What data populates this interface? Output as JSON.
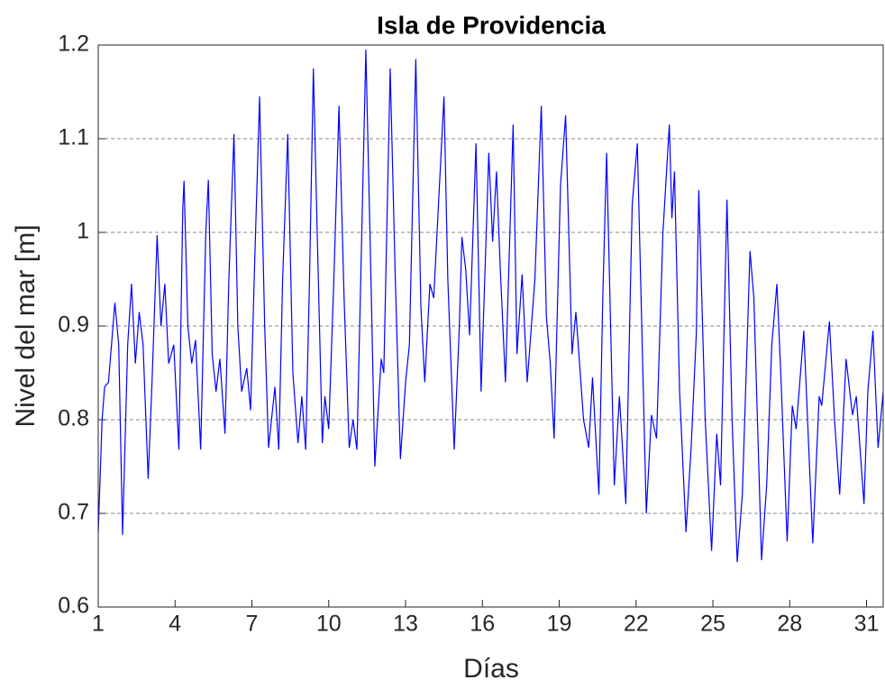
{
  "chart_data": {
    "type": "line",
    "title": "Isla de Providencia",
    "xlabel": "Días",
    "ylabel": "Nivel del mar [m]",
    "color": "#0000ff",
    "grid": true,
    "xlim": [
      1,
      31.65
    ],
    "ylim": [
      0.6,
      1.2
    ],
    "xticks": [
      1,
      4,
      7,
      10,
      13,
      16,
      19,
      22,
      25,
      28,
      31
    ],
    "yticks": [
      0.6,
      0.7,
      0.8,
      0.9,
      1,
      1.1,
      1.2
    ],
    "x": [
      1.0,
      1.15,
      1.25,
      1.4,
      1.65,
      1.8,
      1.95,
      2.15,
      2.3,
      2.45,
      2.6,
      2.75,
      2.95,
      3.1,
      3.3,
      3.45,
      3.6,
      3.75,
      3.95,
      4.15,
      4.3,
      4.35,
      4.5,
      4.65,
      4.8,
      5.0,
      5.2,
      5.3,
      5.45,
      5.6,
      5.75,
      5.95,
      6.1,
      6.3,
      6.45,
      6.6,
      6.8,
      6.95,
      7.1,
      7.3,
      7.5,
      7.65,
      7.9,
      8.05,
      8.2,
      8.4,
      8.6,
      8.8,
      8.95,
      9.1,
      9.25,
      9.4,
      9.55,
      9.75,
      9.85,
      10.0,
      10.2,
      10.4,
      10.6,
      10.8,
      10.95,
      11.1,
      11.25,
      11.45,
      11.65,
      11.8,
      11.95,
      12.05,
      12.15,
      12.4,
      12.6,
      12.8,
      13.0,
      13.15,
      13.4,
      13.6,
      13.75,
      13.95,
      14.1,
      14.5,
      14.65,
      14.9,
      15.1,
      15.2,
      15.35,
      15.5,
      15.75,
      15.95,
      16.25,
      16.4,
      16.55,
      16.7,
      16.9,
      17.2,
      17.35,
      17.55,
      17.75,
      18.05,
      18.3,
      18.5,
      18.65,
      18.8,
      19.05,
      19.25,
      19.5,
      19.65,
      19.95,
      20.15,
      20.3,
      20.55,
      20.7,
      20.85,
      21.15,
      21.35,
      21.6,
      21.85,
      22.05,
      22.4,
      22.6,
      22.8,
      23.05,
      23.3,
      23.4,
      23.5,
      23.7,
      23.95,
      24.15,
      24.35,
      24.45,
      24.7,
      24.95,
      25.15,
      25.3,
      25.55,
      25.75,
      25.95,
      26.15,
      26.45,
      26.6,
      26.9,
      27.1,
      27.3,
      27.5,
      27.65,
      27.9,
      28.1,
      28.25,
      28.55,
      28.9,
      29.15,
      29.25,
      29.55,
      29.75,
      29.95,
      30.2,
      30.45,
      30.6,
      30.9,
      31.05,
      31.25,
      31.45,
      31.65
    ],
    "values": [
      0.68,
      0.8,
      0.835,
      0.84,
      0.925,
      0.88,
      0.677,
      0.88,
      0.945,
      0.86,
      0.915,
      0.88,
      0.737,
      0.84,
      0.997,
      0.9,
      0.945,
      0.86,
      0.88,
      0.768,
      1.025,
      1.055,
      0.9,
      0.86,
      0.885,
      0.768,
      1.0,
      1.056,
      0.87,
      0.83,
      0.865,
      0.785,
      0.95,
      1.105,
      0.9,
      0.83,
      0.855,
      0.81,
      0.96,
      1.145,
      0.9,
      0.77,
      0.835,
      0.768,
      0.95,
      1.105,
      0.85,
      0.775,
      0.825,
      0.768,
      0.95,
      1.175,
      1.0,
      0.775,
      0.825,
      0.79,
      0.95,
      1.135,
      0.93,
      0.77,
      0.8,
      0.768,
      0.95,
      1.195,
      0.95,
      0.75,
      0.82,
      0.865,
      0.85,
      1.175,
      0.95,
      0.758,
      0.84,
      0.88,
      1.185,
      0.92,
      0.84,
      0.945,
      0.93,
      1.145,
      0.95,
      0.768,
      0.9,
      0.995,
      0.96,
      0.89,
      1.095,
      0.83,
      1.085,
      0.99,
      1.065,
      0.96,
      0.84,
      1.115,
      0.87,
      0.955,
      0.84,
      0.95,
      1.135,
      0.91,
      0.86,
      0.78,
      1.05,
      1.125,
      0.87,
      0.915,
      0.8,
      0.77,
      0.845,
      0.72,
      0.93,
      1.085,
      0.73,
      0.825,
      0.71,
      1.03,
      1.095,
      0.7,
      0.805,
      0.78,
      1.0,
      1.115,
      1.015,
      1.065,
      0.83,
      0.68,
      0.77,
      0.89,
      1.045,
      0.8,
      0.66,
      0.785,
      0.73,
      1.035,
      0.8,
      0.648,
      0.72,
      0.98,
      0.93,
      0.65,
      0.73,
      0.88,
      0.945,
      0.85,
      0.67,
      0.815,
      0.79,
      0.895,
      0.668,
      0.825,
      0.815,
      0.905,
      0.8,
      0.72,
      0.865,
      0.805,
      0.825,
      0.71,
      0.83,
      0.895,
      0.77,
      0.83
    ]
  }
}
